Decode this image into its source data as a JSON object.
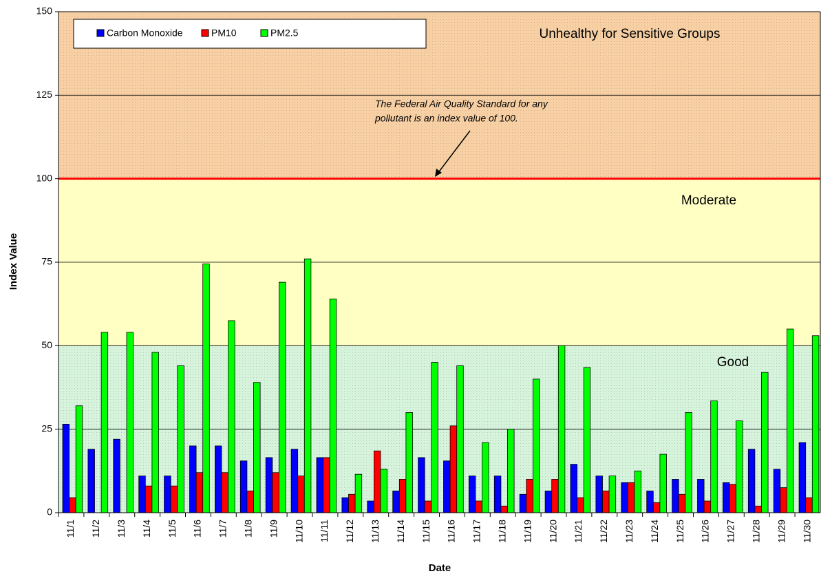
{
  "chart_data": {
    "type": "bar",
    "x_label": "Date",
    "y_label": "Index Value",
    "categories": [
      "11/1",
      "11/2",
      "11/3",
      "11/4",
      "11/5",
      "11/6",
      "11/7",
      "11/8",
      "11/9",
      "11/10",
      "11/11",
      "11/12",
      "11/13",
      "11/14",
      "11/15",
      "11/16",
      "11/17",
      "11/18",
      "11/19",
      "11/20",
      "11/21",
      "11/22",
      "11/23",
      "11/24",
      "11/25",
      "11/26",
      "11/27",
      "11/28",
      "11/29",
      "11/30"
    ],
    "series": [
      {
        "name": "Carbon Monoxide",
        "color": "#0000ff",
        "values": [
          26.5,
          19,
          22,
          11,
          11,
          20,
          20,
          15.5,
          16.5,
          19,
          16.5,
          4.5,
          3.5,
          6.5,
          16.5,
          15.5,
          11,
          11,
          5.5,
          6.5,
          14.5,
          11,
          9,
          6.5,
          10,
          10,
          9,
          19,
          13,
          21
        ]
      },
      {
        "name": "PM10",
        "color": "#ff0000",
        "values": [
          4.5,
          0,
          0,
          8,
          8,
          12,
          12,
          6.5,
          12,
          11,
          16.5,
          5.5,
          18.5,
          10,
          3.5,
          26,
          3.5,
          2,
          10,
          10,
          4.5,
          6.5,
          9,
          3,
          5.5,
          3.5,
          8.5,
          2,
          7.5,
          4.5
        ]
      },
      {
        "name": "PM2.5",
        "color": "#00ff00",
        "values": [
          32,
          54,
          54,
          48,
          44,
          74.5,
          57.5,
          39,
          69,
          76,
          64,
          11.5,
          13,
          30,
          45,
          44,
          21,
          25,
          40,
          50,
          43.5,
          11,
          12.5,
          17.5,
          30,
          33.5,
          27.5,
          42,
          55,
          53
        ]
      }
    ],
    "ylim": [
      0,
      150
    ],
    "yticks": [
      0,
      25,
      50,
      75,
      100,
      125,
      150
    ],
    "grid": true,
    "bands": [
      {
        "from": 0,
        "to": 50,
        "label": "Good",
        "fill": "#d6f3dc",
        "label_color": "#228b22"
      },
      {
        "from": 50,
        "to": 100,
        "label": "Moderate",
        "fill": "#ffffc4",
        "label_color": "#f0c000"
      },
      {
        "from": 100,
        "to": 150,
        "label": "Unhealthy for Sensitive Groups",
        "fill": "#f8d0a4",
        "label_color": "#ff0000"
      }
    ],
    "reference_line": {
      "value": 100,
      "color": "#ff0000"
    },
    "annotation": [
      "The Federal Air Quality Standard for any",
      "pollutant is an index value of 100."
    ],
    "legend": "top-left"
  }
}
